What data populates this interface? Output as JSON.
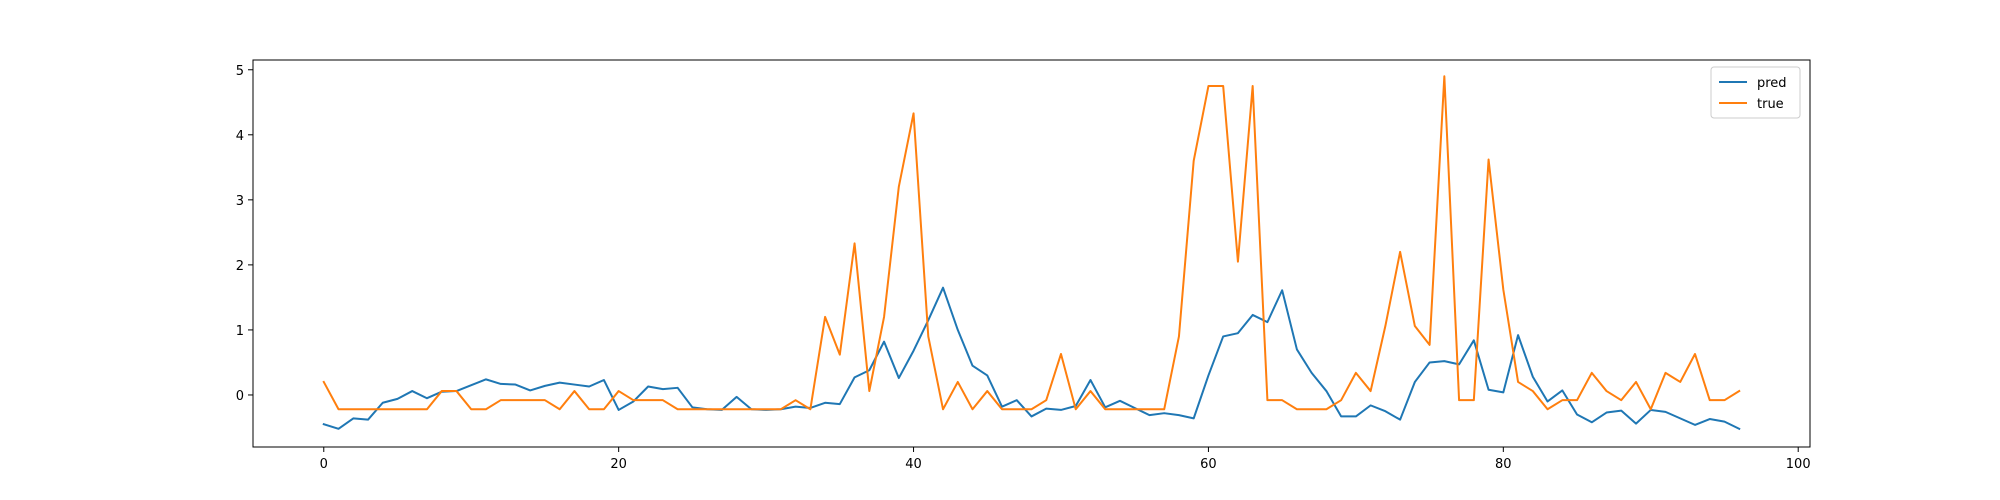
{
  "chart_data": {
    "type": "line",
    "title": "",
    "xlabel": "",
    "ylabel": "",
    "xlim": [
      -4.8,
      100.8
    ],
    "ylim": [
      -0.8,
      5.15
    ],
    "xticks": [
      0,
      20,
      40,
      60,
      80,
      100
    ],
    "yticks": [
      0,
      1,
      2,
      3,
      4,
      5
    ],
    "grid": false,
    "legend_position": "top-right",
    "x": [
      0,
      1,
      2,
      3,
      4,
      5,
      6,
      7,
      8,
      9,
      10,
      11,
      12,
      13,
      14,
      15,
      16,
      17,
      18,
      19,
      20,
      21,
      22,
      23,
      24,
      25,
      26,
      27,
      28,
      29,
      30,
      31,
      32,
      33,
      34,
      35,
      36,
      37,
      38,
      39,
      40,
      41,
      42,
      43,
      44,
      45,
      46,
      47,
      48,
      49,
      50,
      51,
      52,
      53,
      54,
      55,
      56,
      57,
      58,
      59,
      60,
      61,
      62,
      63,
      64,
      65,
      66,
      67,
      68,
      69,
      70,
      71,
      72,
      73,
      74,
      75,
      76,
      77,
      78,
      79,
      80,
      81,
      82,
      83,
      84,
      85,
      86,
      87,
      88,
      89,
      90,
      91,
      92,
      93,
      94,
      95,
      96
    ],
    "series": [
      {
        "name": "pred",
        "color": "#1f77b4",
        "values": [
          -0.45,
          -0.52,
          -0.36,
          -0.38,
          -0.12,
          -0.06,
          0.06,
          -0.05,
          0.05,
          0.06,
          0.15,
          0.24,
          0.17,
          0.16,
          0.07,
          0.14,
          0.19,
          0.16,
          0.13,
          0.23,
          -0.23,
          -0.1,
          0.13,
          0.09,
          0.11,
          -0.19,
          -0.22,
          -0.23,
          -0.03,
          -0.22,
          -0.23,
          -0.22,
          -0.18,
          -0.2,
          -0.12,
          -0.14,
          0.27,
          0.38,
          0.82,
          0.26,
          0.68,
          1.15,
          1.65,
          1.0,
          0.45,
          0.3,
          -0.18,
          -0.08,
          -0.33,
          -0.21,
          -0.23,
          -0.17,
          0.23,
          -0.19,
          -0.09,
          -0.2,
          -0.31,
          -0.28,
          -0.31,
          -0.36,
          0.3,
          0.9,
          0.95,
          1.23,
          1.12,
          1.61,
          0.7,
          0.34,
          0.06,
          -0.33,
          -0.33,
          -0.16,
          -0.25,
          -0.38,
          0.2,
          0.5,
          0.52,
          0.47,
          0.84,
          0.08,
          0.04,
          0.92,
          0.28,
          -0.1,
          0.07,
          -0.3,
          -0.42,
          -0.27,
          -0.24,
          -0.44,
          -0.23,
          -0.26,
          -0.36,
          -0.46,
          -0.37,
          -0.41,
          -0.52
        ]
      },
      {
        "name": "true",
        "color": "#ff7f0e",
        "values": [
          0.2,
          -0.22,
          -0.22,
          -0.22,
          -0.22,
          -0.22,
          -0.22,
          -0.22,
          0.06,
          0.06,
          -0.22,
          -0.22,
          -0.08,
          -0.08,
          -0.08,
          -0.08,
          -0.22,
          0.06,
          -0.22,
          -0.22,
          0.06,
          -0.08,
          -0.08,
          -0.08,
          -0.22,
          -0.22,
          -0.22,
          -0.22,
          -0.22,
          -0.22,
          -0.22,
          -0.22,
          -0.08,
          -0.22,
          1.2,
          0.62,
          2.33,
          0.06,
          1.2,
          3.2,
          4.33,
          0.9,
          -0.22,
          0.2,
          -0.22,
          0.06,
          -0.22,
          -0.22,
          -0.22,
          -0.08,
          0.63,
          -0.22,
          0.06,
          -0.22,
          -0.22,
          -0.22,
          -0.22,
          -0.22,
          0.9,
          3.6,
          4.75,
          4.75,
          2.05,
          4.75,
          -0.08,
          -0.08,
          -0.22,
          -0.22,
          -0.22,
          -0.08,
          0.34,
          0.06,
          1.06,
          2.2,
          1.06,
          0.77,
          4.9,
          -0.08,
          -0.08,
          3.62,
          1.62,
          0.2,
          0.06,
          -0.22,
          -0.08,
          -0.08,
          0.34,
          0.06,
          -0.08,
          0.2,
          -0.22,
          0.34,
          0.2,
          0.63,
          -0.08,
          -0.08,
          0.06
        ]
      }
    ]
  }
}
